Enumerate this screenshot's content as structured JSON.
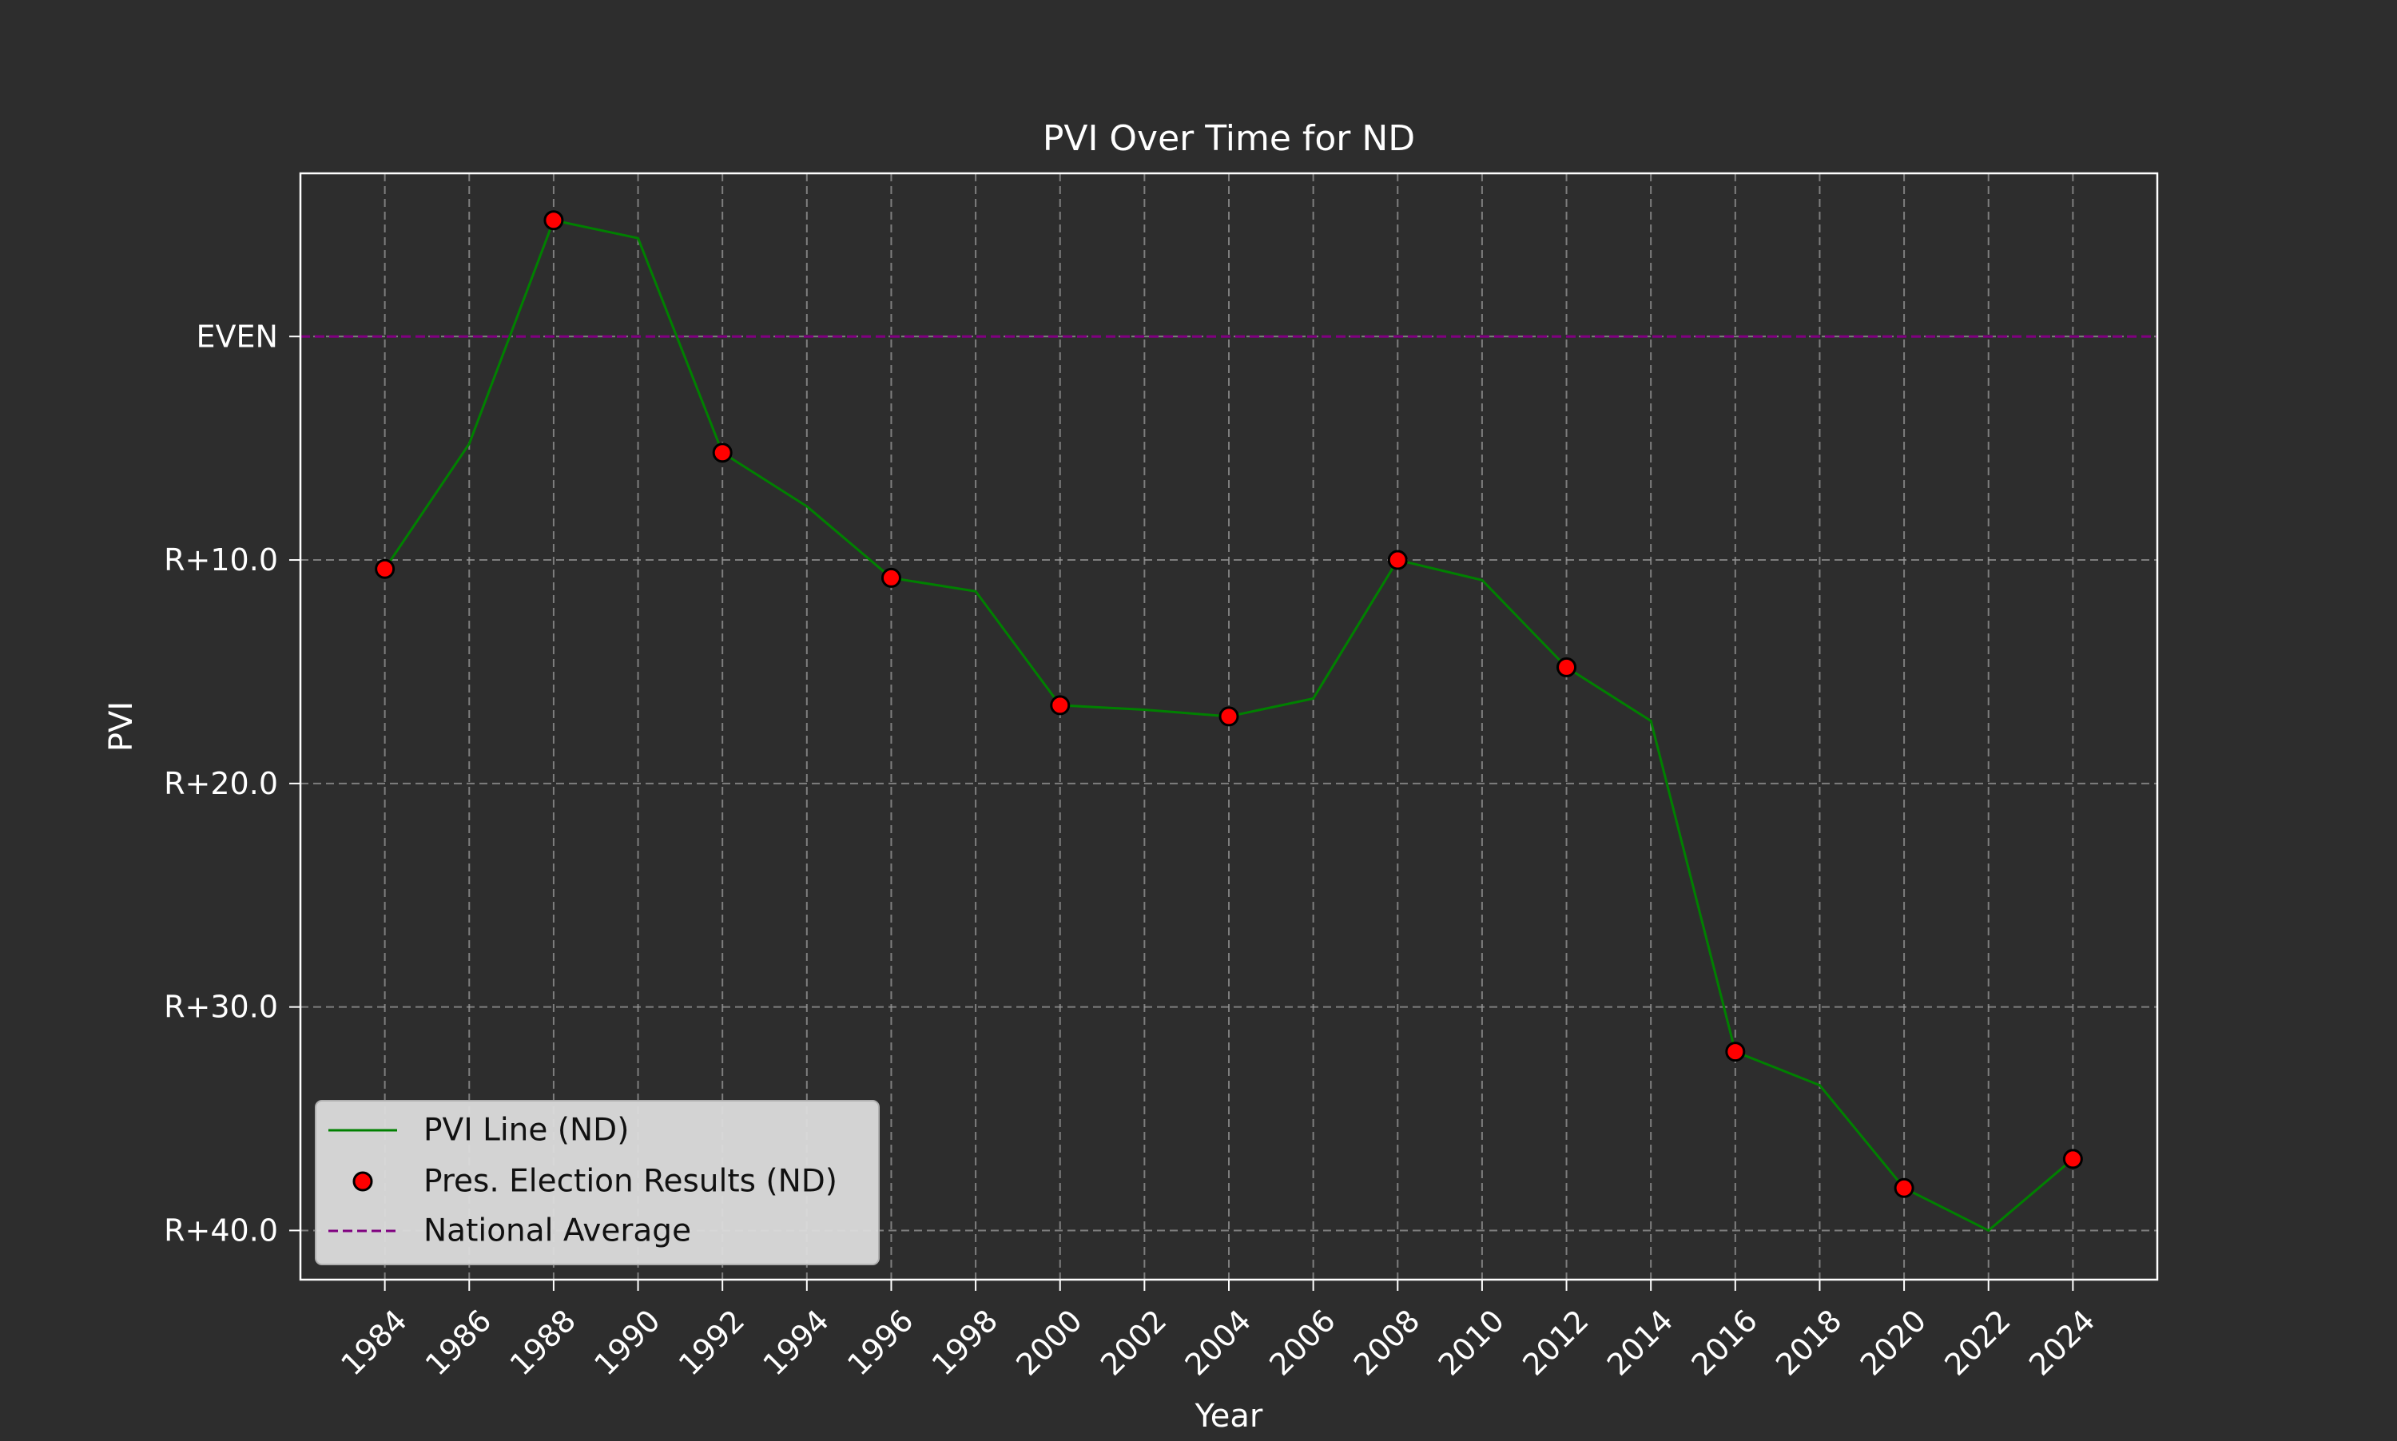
{
  "chart_data": {
    "type": "line",
    "title": "PVI Over Time for ND",
    "xlabel": "Year",
    "ylabel": "PVI",
    "x_ticks": [
      1984,
      1986,
      1988,
      1990,
      1992,
      1994,
      1996,
      1998,
      2000,
      2002,
      2004,
      2006,
      2008,
      2010,
      2012,
      2014,
      2016,
      2018,
      2020,
      2022,
      2024
    ],
    "x_range": [
      1982,
      2026
    ],
    "y_ticks": [
      {
        "value": 0,
        "label": "EVEN"
      },
      {
        "value": -10,
        "label": "R+10.0"
      },
      {
        "value": -20,
        "label": "R+20.0"
      },
      {
        "value": -30,
        "label": "R+30.0"
      },
      {
        "value": -40,
        "label": "R+40.0"
      }
    ],
    "y_range": [
      -42.2,
      7.3
    ],
    "grid": true,
    "legend_position": "lower-left",
    "series": [
      {
        "name": "PVI Line (ND)",
        "kind": "line",
        "color": "#008000",
        "x": [
          1984,
          1986,
          1988,
          1990,
          1992,
          1994,
          1996,
          1998,
          2000,
          2002,
          2004,
          2006,
          2008,
          2010,
          2012,
          2014,
          2016,
          2018,
          2020,
          2022,
          2024
        ],
        "y": [
          -10.4,
          -4.8,
          5.2,
          4.4,
          -5.2,
          -7.6,
          -10.8,
          -11.4,
          -16.5,
          -16.7,
          -17.0,
          -16.2,
          -10.0,
          -10.9,
          -14.8,
          -17.2,
          -32.0,
          -33.5,
          -38.1,
          -40.0,
          -36.8
        ]
      },
      {
        "name": "Pres. Election Results (ND)",
        "kind": "scatter",
        "color": "#ff0000",
        "edge_color": "#000000",
        "x": [
          1984,
          1988,
          1992,
          1996,
          2000,
          2004,
          2008,
          2012,
          2016,
          2020,
          2024
        ],
        "y": [
          -10.4,
          5.2,
          -5.2,
          -10.8,
          -16.5,
          -17.0,
          -10.0,
          -14.8,
          -32.0,
          -38.1,
          -36.8
        ]
      },
      {
        "name": "National Average",
        "kind": "hline",
        "color": "#800080",
        "y": 0
      }
    ]
  }
}
